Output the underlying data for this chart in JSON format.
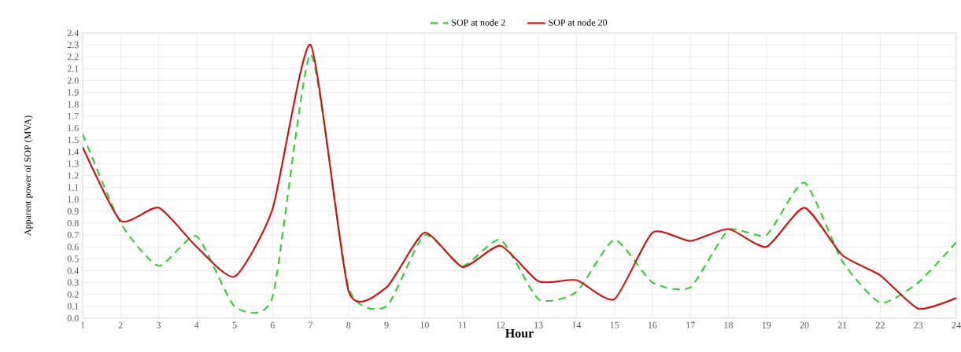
{
  "chart_data": {
    "type": "line",
    "xlabel": "Hour",
    "ylabel": "Apparent power of SOP (MVA)",
    "x": [
      1,
      2,
      3,
      4,
      5,
      6,
      7,
      8,
      9,
      10,
      11,
      12,
      13,
      14,
      15,
      16,
      17,
      18,
      19,
      20,
      21,
      22,
      23,
      24
    ],
    "series": [
      {
        "name": "SOP at node 2",
        "color": "#33cc33",
        "line_style": "dashed",
        "values": [
          1.55,
          0.8,
          0.44,
          0.69,
          0.1,
          0.18,
          2.22,
          0.26,
          0.1,
          0.7,
          0.44,
          0.66,
          0.16,
          0.22,
          0.66,
          0.3,
          0.26,
          0.74,
          0.7,
          1.14,
          0.48,
          0.13,
          0.3,
          0.64
        ]
      },
      {
        "name": "SOP at node 20",
        "color": "#cc1111",
        "line_style": "solid",
        "values": [
          1.44,
          0.82,
          0.93,
          0.6,
          0.35,
          0.92,
          2.3,
          0.23,
          0.26,
          0.72,
          0.43,
          0.61,
          0.31,
          0.32,
          0.16,
          0.72,
          0.65,
          0.75,
          0.6,
          0.93,
          0.53,
          0.36,
          0.08,
          0.17
        ]
      }
    ],
    "xlim": [
      1,
      24
    ],
    "xticks": [
      1,
      2,
      3,
      4,
      5,
      6,
      7,
      8,
      9,
      10,
      11,
      12,
      13,
      14,
      15,
      16,
      17,
      18,
      19,
      20,
      21,
      22,
      23,
      24
    ],
    "ylim": [
      0,
      2.4
    ],
    "yticks": [
      {
        "value": 0,
        "label": "0.0"
      },
      0.1,
      0.2,
      0.3,
      0.4,
      0.5,
      0.6,
      0.7,
      0.8,
      0.9,
      {
        "value": 1,
        "label": "1.0"
      },
      1.1,
      1.2,
      1.3,
      1.4,
      1.5,
      1.6,
      1.7,
      1.8,
      1.9,
      {
        "value": 2,
        "label": "2.0"
      },
      2.1,
      2.2,
      2.3,
      2.4
    ],
    "grid": true,
    "legend": "top",
    "marker": "none"
  }
}
